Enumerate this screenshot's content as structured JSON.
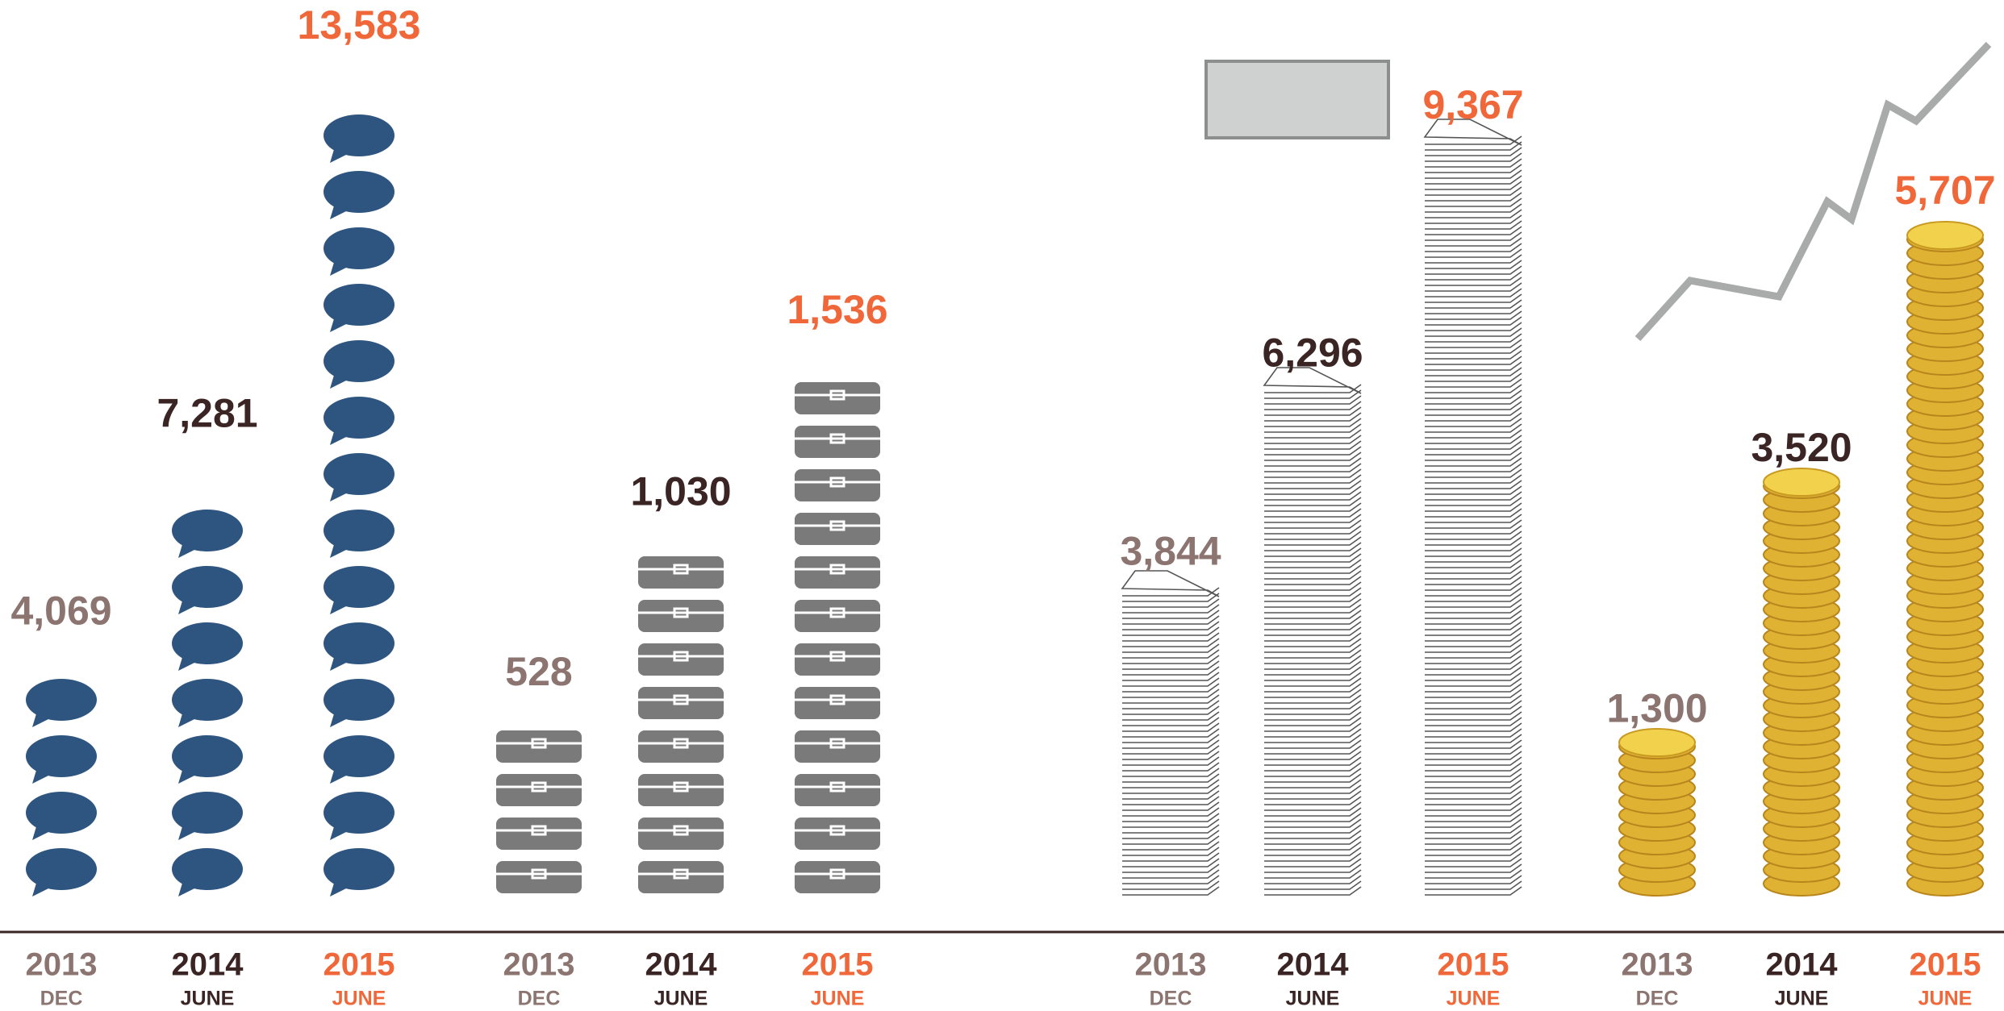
{
  "chart_data": [
    {
      "type": "pictograph",
      "icon": "speech-bubble",
      "color": "#2e5580",
      "categories": [
        "2013",
        "2014",
        "2015"
      ],
      "periods": [
        "DEC",
        "JUNE",
        "JUNE"
      ],
      "category_colors": [
        "#8c7470",
        "#3b2424",
        "#f0683a"
      ],
      "values": [
        4069,
        7281,
        13583
      ],
      "value_labels": [
        "4,069",
        "7,281",
        "13,583"
      ]
    },
    {
      "type": "pictograph",
      "icon": "briefcase",
      "color": "#7a7a7a",
      "categories": [
        "2013",
        "2014",
        "2015"
      ],
      "periods": [
        "DEC",
        "JUNE",
        "JUNE"
      ],
      "category_colors": [
        "#8c7470",
        "#3b2424",
        "#f0683a"
      ],
      "values": [
        528,
        1030,
        1536
      ],
      "value_labels": [
        "528",
        "1,030",
        "1,536"
      ]
    },
    {
      "type": "pictograph",
      "icon": "paper",
      "color": "#555555",
      "categories": [
        "2013",
        "2014",
        "2015"
      ],
      "periods": [
        "DEC",
        "JUNE",
        "JUNE"
      ],
      "category_colors": [
        "#8c7470",
        "#3b2424",
        "#f0683a"
      ],
      "values": [
        3844,
        6296,
        9367
      ],
      "value_labels": [
        "3,844",
        "6,296",
        "9,367"
      ]
    },
    {
      "type": "pictograph",
      "icon": "coin",
      "color": "#e0b234",
      "categories": [
        "2013",
        "2014",
        "2015"
      ],
      "periods": [
        "DEC",
        "JUNE",
        "JUNE"
      ],
      "category_colors": [
        "#8c7470",
        "#3b2424",
        "#f0683a"
      ],
      "values": [
        1300,
        3520,
        5707
      ],
      "value_labels": [
        "1,300",
        "3,520",
        "5,707"
      ]
    }
  ]
}
